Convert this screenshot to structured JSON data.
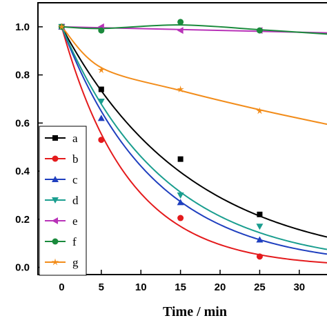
{
  "chart_data": {
    "type": "scatter",
    "title": "",
    "xlabel": "Time / min",
    "ylabel": "",
    "xlim": [
      -3,
      33.5
    ],
    "ylim": [
      -0.03,
      1.1
    ],
    "xticks": [
      0,
      5,
      10,
      15,
      20,
      25,
      30
    ],
    "yticks": [
      0.0,
      0.2,
      0.4,
      0.6,
      0.8,
      1.0
    ],
    "ytick_labels": [
      "0.0",
      "0.2",
      "0.4",
      "0.6",
      "0.8",
      "1.0"
    ],
    "grid": false,
    "legend_position": "left",
    "series": [
      {
        "name": "a",
        "color": "#000000",
        "marker": "square",
        "x": [
          0,
          5,
          15,
          25
        ],
        "y": [
          1.0,
          0.74,
          0.45,
          0.22
        ],
        "fit": {
          "kind": "exp",
          "k": 0.0618,
          "x_end": 33.5
        }
      },
      {
        "name": "b",
        "color": "#e41a1c",
        "marker": "circle",
        "x": [
          0,
          5,
          15,
          25
        ],
        "y": [
          1.0,
          0.53,
          0.205,
          0.045
        ],
        "fit": {
          "kind": "exp",
          "k": 0.118,
          "x_end": 33.5
        }
      },
      {
        "name": "c",
        "color": "#1f3fbf",
        "marker": "triangle-up",
        "x": [
          0,
          5,
          15,
          25
        ],
        "y": [
          1.0,
          0.62,
          0.27,
          0.115
        ],
        "fit": {
          "kind": "exp",
          "k": 0.0865,
          "x_end": 33.5
        }
      },
      {
        "name": "d",
        "color": "#1a9e8f",
        "marker": "triangle-down",
        "x": [
          0,
          5,
          15,
          25
        ],
        "y": [
          1.0,
          0.69,
          0.3,
          0.17
        ],
        "fit": {
          "kind": "exp",
          "k": 0.0775,
          "x_end": 33.5
        }
      },
      {
        "name": "e",
        "color": "#b832b8",
        "marker": "triangle-left",
        "x": [
          0,
          5,
          15,
          25
        ],
        "y": [
          1.0,
          1.0,
          0.985,
          0.985
        ],
        "fit": {
          "kind": "linear",
          "points": [
            [
              0,
              1.0
            ],
            [
              33.5,
              0.975
            ]
          ]
        }
      },
      {
        "name": "f",
        "color": "#1a8a3c",
        "marker": "circle",
        "x": [
          0,
          5,
          15,
          25
        ],
        "y": [
          1.0,
          0.985,
          1.02,
          0.985
        ],
        "fit": {
          "kind": "spline",
          "points": [
            [
              0,
              1.0
            ],
            [
              5,
              0.993
            ],
            [
              15,
              1.008
            ],
            [
              25,
              0.988
            ],
            [
              33.5,
              0.97
            ]
          ]
        }
      },
      {
        "name": "g",
        "color": "#f28c1a",
        "marker": "star",
        "x": [
          0,
          5,
          15,
          25
        ],
        "y": [
          1.0,
          0.82,
          0.74,
          0.65
        ],
        "fit": {
          "kind": "spline",
          "points": [
            [
              0,
              1.0
            ],
            [
              5,
              0.83
            ],
            [
              15,
              0.735
            ],
            [
              25,
              0.655
            ],
            [
              33.5,
              0.595
            ]
          ]
        }
      }
    ]
  }
}
